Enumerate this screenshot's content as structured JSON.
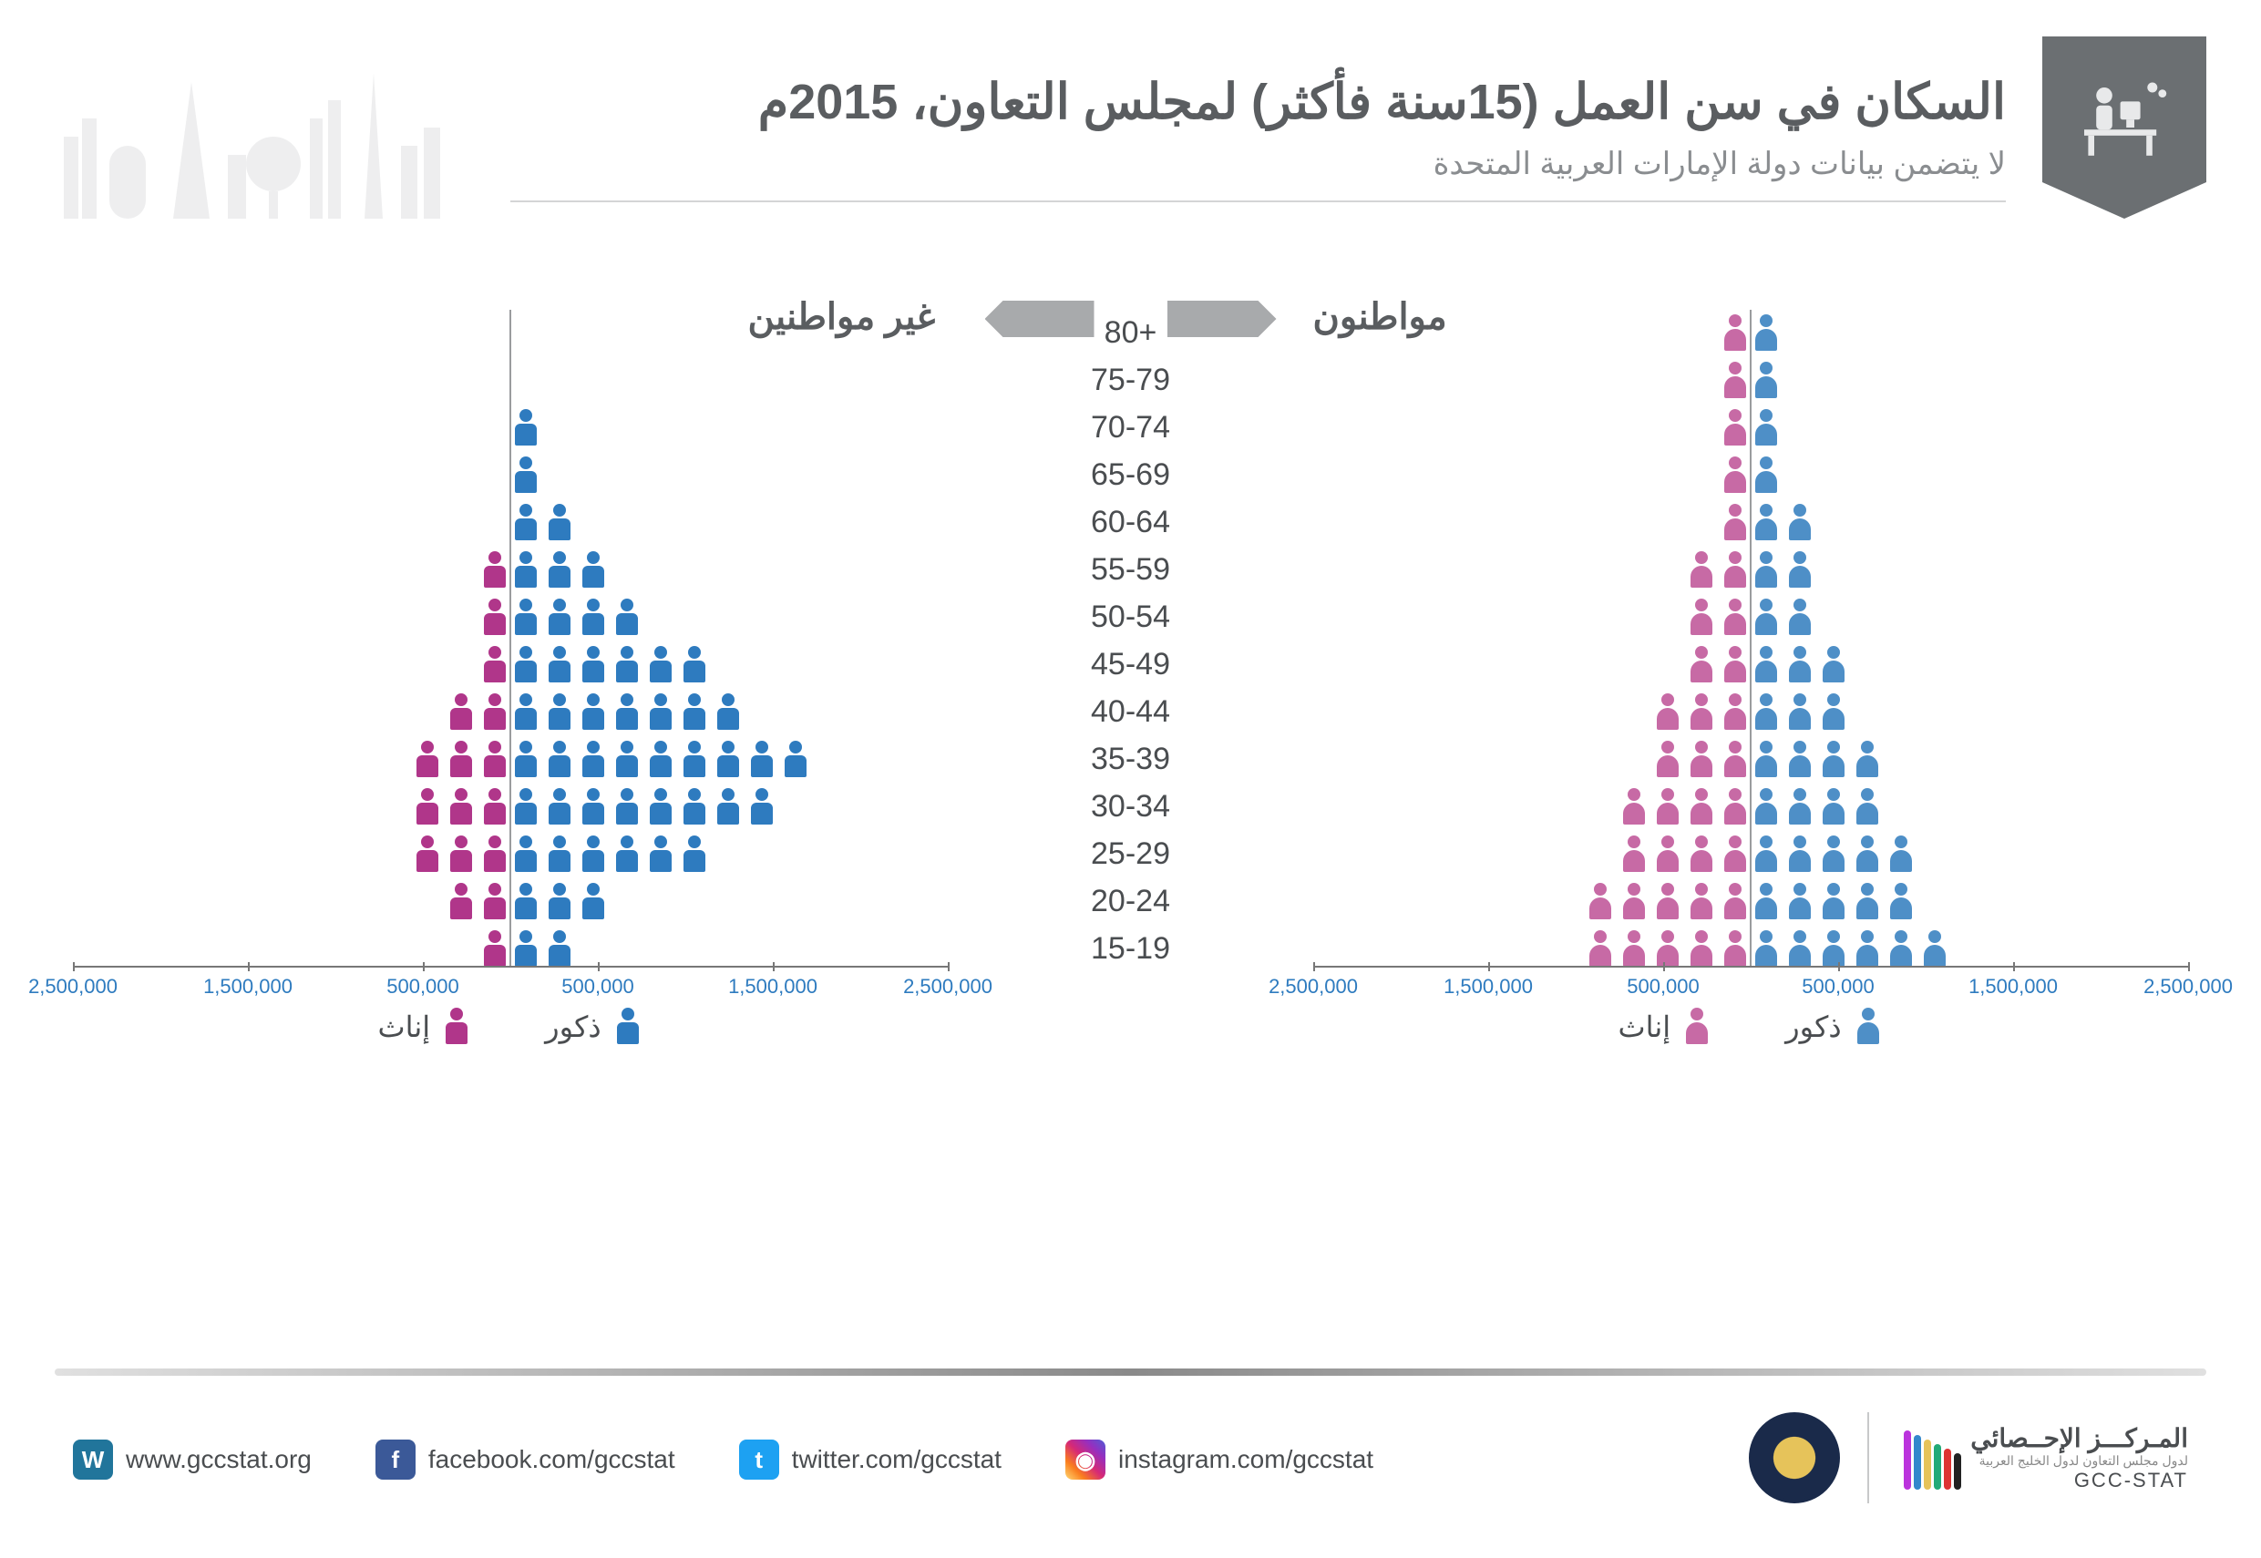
{
  "header": {
    "title": "السكان في سن العمل (15سنة فأكثر) لمجلس التعاون، 2015م",
    "subtitle": "لا يتضمن بيانات دولة الإمارات العربية المتحدة"
  },
  "categories": {
    "noncitizens": "غير مواطنين",
    "citizens": "مواطنون"
  },
  "age_groups": [
    "80+",
    "75-79",
    "70-74",
    "65-69",
    "60-64",
    "55-59",
    "50-54",
    "45-49",
    "40-44",
    "35-39",
    "30-34",
    "25-29",
    "20-24",
    "15-19"
  ],
  "axis": {
    "ticks": [
      "2,500,000",
      "1,500,000",
      "500,000",
      "500,000",
      "1,500,000",
      "2,500,000"
    ],
    "tick_positions_pct": [
      0,
      20,
      40,
      60,
      80,
      100
    ],
    "max": 2500000,
    "unit_per_icon": 250000
  },
  "pyramids": {
    "noncitizens": {
      "type": "population-pyramid-pictogram",
      "male_color": "#2e7bbf",
      "female_color": "#b0368a",
      "rows": [
        {
          "age": "80+",
          "male_icons": 0,
          "female_icons": 0
        },
        {
          "age": "75-79",
          "male_icons": 0,
          "female_icons": 0
        },
        {
          "age": "70-74",
          "male_icons": 1,
          "female_icons": 0
        },
        {
          "age": "65-69",
          "male_icons": 1,
          "female_icons": 0
        },
        {
          "age": "60-64",
          "male_icons": 2,
          "female_icons": 0
        },
        {
          "age": "55-59",
          "male_icons": 3,
          "female_icons": 1
        },
        {
          "age": "50-54",
          "male_icons": 4,
          "female_icons": 1
        },
        {
          "age": "45-49",
          "male_icons": 6,
          "female_icons": 1
        },
        {
          "age": "40-44",
          "male_icons": 7,
          "female_icons": 2
        },
        {
          "age": "35-39",
          "male_icons": 9,
          "female_icons": 3
        },
        {
          "age": "30-34",
          "male_icons": 8,
          "female_icons": 3
        },
        {
          "age": "25-29",
          "male_icons": 6,
          "female_icons": 3
        },
        {
          "age": "20-24",
          "male_icons": 3,
          "female_icons": 2
        },
        {
          "age": "15-19",
          "male_icons": 2,
          "female_icons": 1
        }
      ]
    },
    "citizens": {
      "type": "population-pyramid-pictogram",
      "male_color": "#4e8fc7",
      "female_color": "#c76aa5",
      "rows": [
        {
          "age": "80+",
          "male_icons": 1,
          "female_icons": 1
        },
        {
          "age": "75-79",
          "male_icons": 1,
          "female_icons": 1
        },
        {
          "age": "70-74",
          "male_icons": 1,
          "female_icons": 1
        },
        {
          "age": "65-69",
          "male_icons": 1,
          "female_icons": 1
        },
        {
          "age": "60-64",
          "male_icons": 2,
          "female_icons": 1
        },
        {
          "age": "55-59",
          "male_icons": 2,
          "female_icons": 2
        },
        {
          "age": "50-54",
          "male_icons": 2,
          "female_icons": 2
        },
        {
          "age": "45-49",
          "male_icons": 3,
          "female_icons": 2
        },
        {
          "age": "40-44",
          "male_icons": 3,
          "female_icons": 3
        },
        {
          "age": "35-39",
          "male_icons": 4,
          "female_icons": 3
        },
        {
          "age": "30-34",
          "male_icons": 4,
          "female_icons": 4
        },
        {
          "age": "25-29",
          "male_icons": 5,
          "female_icons": 4
        },
        {
          "age": "20-24",
          "male_icons": 5,
          "female_icons": 5
        },
        {
          "age": "15-19",
          "male_icons": 6,
          "female_icons": 5
        }
      ]
    }
  },
  "legend": {
    "male": "ذكور",
    "female": "إناث"
  },
  "footer": {
    "website": "www.gccstat.org",
    "facebook": "facebook.com/gccstat",
    "twitter": "twitter.com/gccstat",
    "instagram": "instagram.com/gccstat",
    "org_ar": "المـركـــز الإحــصائي",
    "org_sub": "لدول مجلس التعاون لدول الخليج العربية",
    "org_en": "GCC-STAT"
  },
  "colors": {
    "title": "#5a5d60",
    "subtitle": "#8a8d90",
    "axis_label": "#2e7bbf",
    "arrow": "#a8aaac",
    "badge_bg": "#6b6f72",
    "wordpress": "#21759b",
    "facebook": "#3b5998",
    "twitter": "#1da1f2",
    "instagram_grad": "linear-gradient(45deg,#feda75,#fa7e1e,#d62976,#962fbf,#4f5bd5)",
    "stripes": [
      "#222",
      "#d33",
      "#2a7",
      "#e6c35a",
      "#38c",
      "#b3d"
    ]
  }
}
